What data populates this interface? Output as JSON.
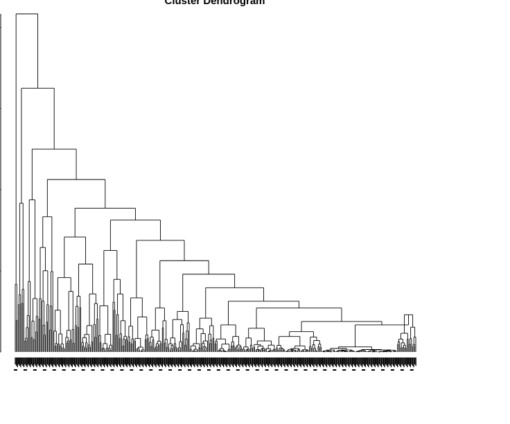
{
  "chart_data": {
    "type": "dendrogram",
    "title": "Cluster Dendrogram",
    "xlabel": "",
    "ylabel": "",
    "axis_ticks_visible": false,
    "grid": false,
    "legend": "none",
    "approx_leaf_count": 400,
    "major_merges": [
      {
        "step": 1,
        "height": 1.0
      },
      {
        "step": 2,
        "height": 0.78
      },
      {
        "step": 3,
        "height": 0.6
      },
      {
        "step": 4,
        "height": 0.51
      },
      {
        "step": 5,
        "height": 0.425
      },
      {
        "step": 6,
        "height": 0.405
      },
      {
        "step": 7,
        "height": 0.39
      },
      {
        "step": 8,
        "height": 0.34
      },
      {
        "step": 9,
        "height": 0.33
      },
      {
        "step": 10,
        "height": 0.32
      },
      {
        "step": 11,
        "height": 0.3
      },
      {
        "step": 12,
        "height": 0.29
      },
      {
        "step": 13,
        "height": 0.27
      },
      {
        "step": 14,
        "height": 0.23
      },
      {
        "step": 15,
        "height": 0.19
      },
      {
        "step": 16,
        "height": 0.15
      },
      {
        "step": 17,
        "height": 0.13
      },
      {
        "step": 18,
        "height": 0.12
      },
      {
        "step": 19,
        "height": 0.11
      },
      {
        "step": 20,
        "height": 0.09
      },
      {
        "step": 21,
        "height": 0.08
      },
      {
        "step": 22,
        "height": 0.07
      }
    ],
    "colors": {
      "line": "#000000",
      "background": "#ffffff"
    }
  }
}
